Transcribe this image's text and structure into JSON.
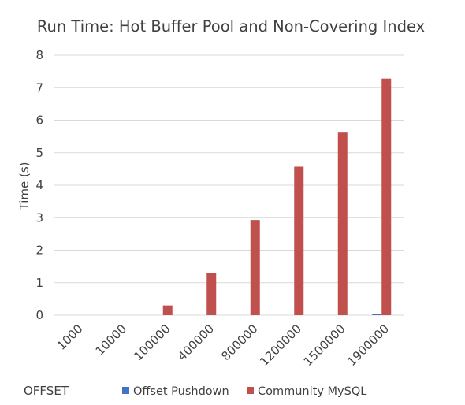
{
  "chart_data": {
    "type": "bar",
    "title": "Run Time: Hot Buffer Pool and Non-Covering Index",
    "xlabel": "OFFSET",
    "ylabel": "Time (s)",
    "ylim": [
      0,
      8
    ],
    "yticks": [
      0,
      1,
      2,
      3,
      4,
      5,
      6,
      7,
      8
    ],
    "categories": [
      "1000",
      "10000",
      "100000",
      "400000",
      "800000",
      "1200000",
      "1500000",
      "1900000"
    ],
    "series": [
      {
        "name": "Offset Pushdown",
        "color": "#4472c4",
        "values": [
          0,
          0,
          0,
          0,
          0,
          0,
          0,
          0.04
        ]
      },
      {
        "name": "Community MySQL",
        "color": "#c0504d",
        "values": [
          0,
          0,
          0.3,
          1.3,
          2.93,
          4.57,
          5.62,
          7.28
        ]
      }
    ],
    "grid": true,
    "legend_position": "bottom"
  }
}
